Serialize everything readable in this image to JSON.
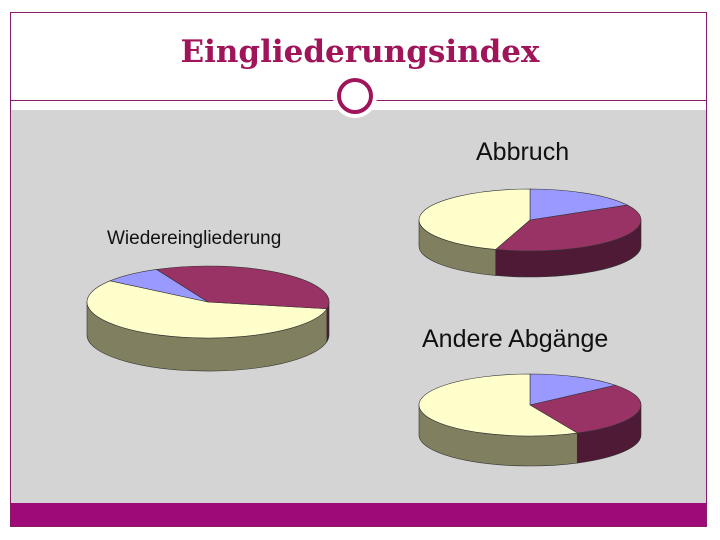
{
  "slide": {
    "title": "Eingliederungsindex"
  },
  "colors": {
    "accent": "#a0145a",
    "frame": "#8a1a6a",
    "footer": "#9e0a78",
    "content_bg": "#d4d4d4"
  },
  "chart_data": [
    {
      "type": "pie",
      "title": "Wiedereingliederung",
      "slices": [
        {
          "value": 57,
          "color": "#ffffcc",
          "side": "#808060"
        },
        {
          "value": 8,
          "color": "#9999ff",
          "side": "#555589"
        },
        {
          "value": 35,
          "color": "#993366",
          "side": "#4f1a36"
        }
      ]
    },
    {
      "type": "pie",
      "title": "Abbruch",
      "slices": [
        {
          "value": 17,
          "color": "#9999ff",
          "side": "#555589"
        },
        {
          "value": 38,
          "color": "#993366",
          "side": "#4f1a36"
        },
        {
          "value": 45,
          "color": "#ffffcc",
          "side": "#808060"
        }
      ]
    },
    {
      "type": "pie",
      "title": "Andere Abgänge",
      "slices": [
        {
          "value": 14,
          "color": "#9999ff",
          "side": "#555589"
        },
        {
          "value": 29,
          "color": "#993366",
          "side": "#4f1a36"
        },
        {
          "value": 57,
          "color": "#ffffcc",
          "side": "#808060"
        }
      ]
    }
  ]
}
